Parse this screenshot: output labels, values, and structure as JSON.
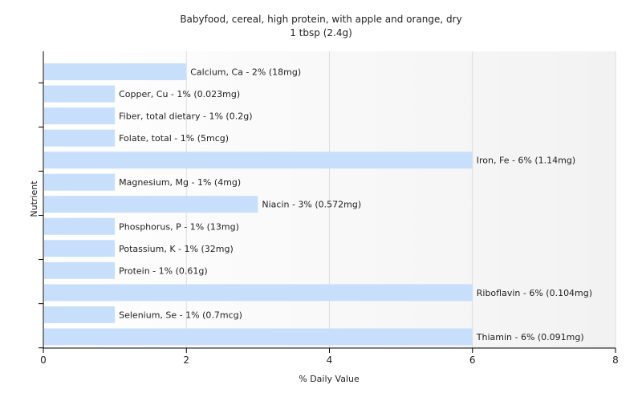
{
  "chart_data": {
    "type": "bar",
    "orientation": "horizontal",
    "title": "Babyfood, cereal, high protein, with apple and orange, dry",
    "subtitle": "1 tbsp (2.4g)",
    "xlabel": "% Daily Value",
    "ylabel": "Nutrient",
    "xlim": [
      0,
      8
    ],
    "xticks": [
      0,
      2,
      4,
      6,
      8
    ],
    "grid": true,
    "bar_color": "#c8dffc",
    "categories": [
      "Calcium, Ca",
      "Copper, Cu",
      "Fiber, total dietary",
      "Folate, total",
      "Iron, Fe",
      "Magnesium, Mg",
      "Niacin",
      "Phosphorus, P",
      "Potassium, K",
      "Protein",
      "Riboflavin",
      "Selenium, Se",
      "Thiamin"
    ],
    "values": [
      2,
      1,
      1,
      1,
      6,
      1,
      3,
      1,
      1,
      1,
      6,
      1,
      6
    ],
    "labels": [
      "Calcium, Ca - 2% (18mg)",
      "Copper, Cu - 1% (0.023mg)",
      "Fiber, total dietary - 1% (0.2g)",
      "Folate, total - 1% (5mcg)",
      "Iron, Fe - 6% (1.14mg)",
      "Magnesium, Mg - 1% (4mg)",
      "Niacin - 3% (0.572mg)",
      "Phosphorus, P - 1% (13mg)",
      "Potassium, K - 1% (32mg)",
      "Protein - 1% (0.61g)",
      "Riboflavin - 6% (0.104mg)",
      "Selenium, Se - 1% (0.7mcg)",
      "Thiamin - 6% (0.091mg)"
    ]
  }
}
